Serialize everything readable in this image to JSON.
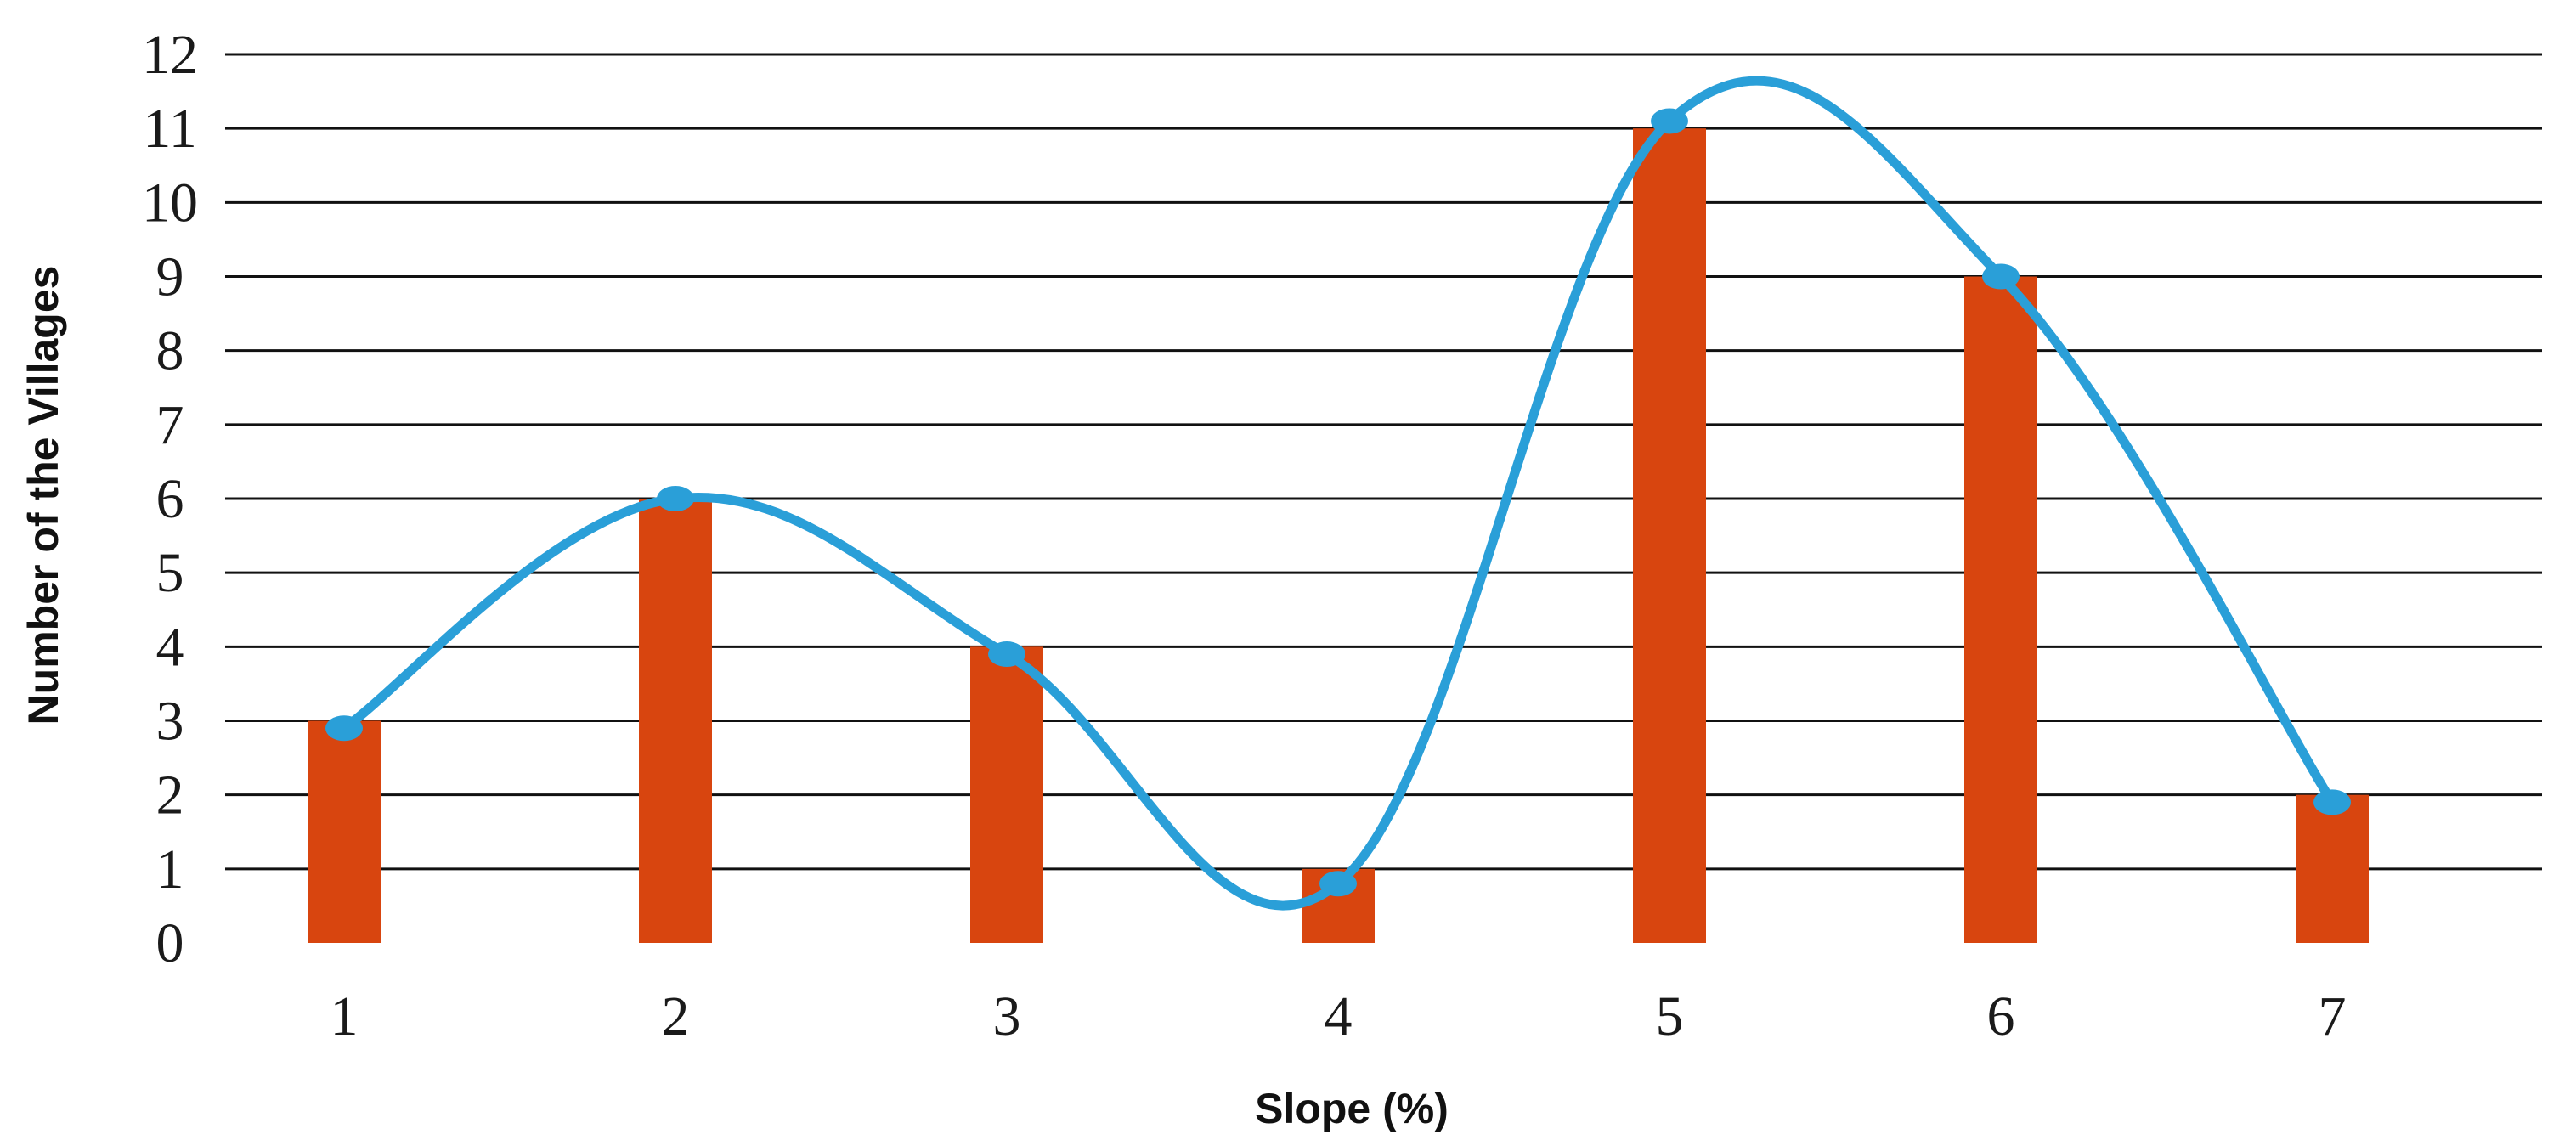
{
  "chart_data": {
    "type": "bar",
    "categories": [
      "1",
      "2",
      "3",
      "4",
      "5",
      "6",
      "7"
    ],
    "series": [
      {
        "type": "bar",
        "values": [
          3,
          6,
          4,
          1,
          11,
          9,
          2
        ]
      },
      {
        "type": "line",
        "smooth": true,
        "values": [
          2.9,
          6,
          3.9,
          0.8,
          11.1,
          9,
          1.9
        ]
      }
    ],
    "xlabel": "Slope (%)",
    "ylabel": "Number of the Villages",
    "ylim": [
      0,
      12
    ],
    "yticks": [
      "0",
      "1",
      "2",
      "3",
      "4",
      "5",
      "6",
      "7",
      "8",
      "9",
      "10",
      "11",
      "12"
    ],
    "grid": true,
    "legend": "none"
  },
  "colors": {
    "bar": "#d8450f",
    "line": "#2a9fd8",
    "marker": "#2a9fd8",
    "grid": "#111111"
  }
}
